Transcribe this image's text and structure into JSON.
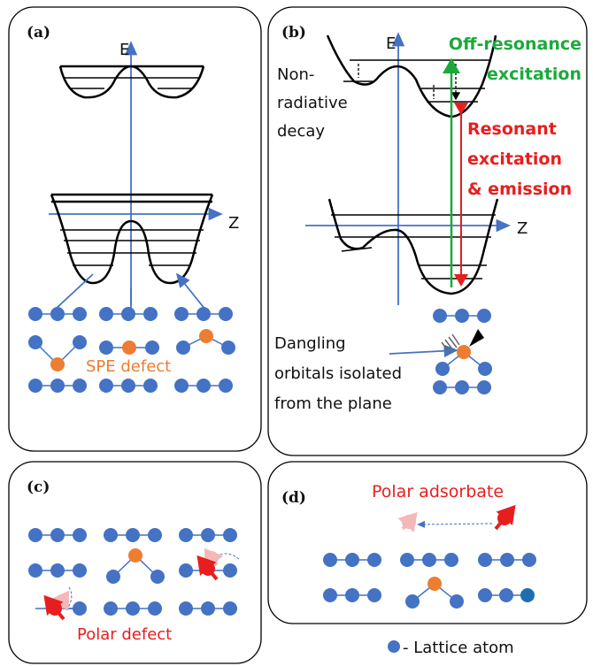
{
  "panels": {
    "a": {
      "label": "(a)",
      "e_axis": "E",
      "z_axis": "Z",
      "defect_label": "SPE defect"
    },
    "b": {
      "label": "(b)",
      "e_axis": "E",
      "z_axis": "Z",
      "off_resonance": [
        "Off-resonance",
        "excitation"
      ],
      "non_radiative": [
        "Non-",
        "radiative",
        "decay"
      ],
      "resonant": [
        "Resonant",
        "excitation",
        "& emission"
      ],
      "dangling": [
        "Dangling",
        "orbitals isolated",
        "from the plane"
      ]
    },
    "c": {
      "label": "(c)",
      "defect_label": "Polar defect"
    },
    "d": {
      "label": "(d)",
      "adsorbate_label": "Polar adsorbate"
    }
  },
  "legend": {
    "text": "- Lattice atom"
  }
}
